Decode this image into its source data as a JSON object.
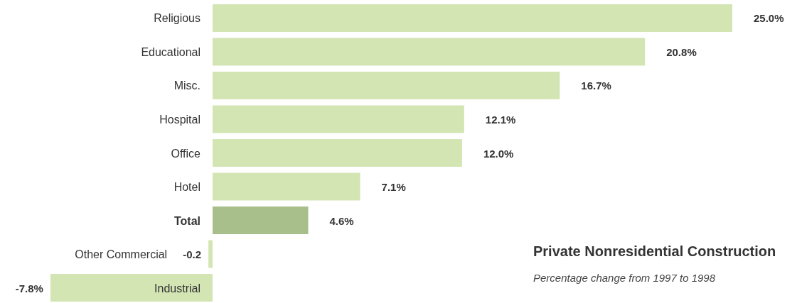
{
  "chart_data": {
    "type": "bar",
    "orientation": "horizontal",
    "title": "Private Nonresidential Construction",
    "subtitle": "Percentage change from 1997 to 1998",
    "categories": [
      "Religious",
      "Educational",
      "Misc.",
      "Hospital",
      "Office",
      "Hotel",
      "Total",
      "Other Commercial",
      "Industrial"
    ],
    "values": [
      25.0,
      20.8,
      16.7,
      12.1,
      12.0,
      7.1,
      4.6,
      -0.2,
      -7.8
    ],
    "value_labels": [
      "25.0%",
      "20.8%",
      "16.7%",
      "12.1%",
      "12.0%",
      "7.1%",
      "4.6%",
      "-0.2",
      "-7.8%"
    ],
    "colors": [
      "#d3e5b3",
      "#d3e5b3",
      "#d3e5b3",
      "#d3e5b3",
      "#d3e5b3",
      "#d3e5b3",
      "#a8bf8c",
      "#d3e5b3",
      "#d3e5b3"
    ]
  }
}
